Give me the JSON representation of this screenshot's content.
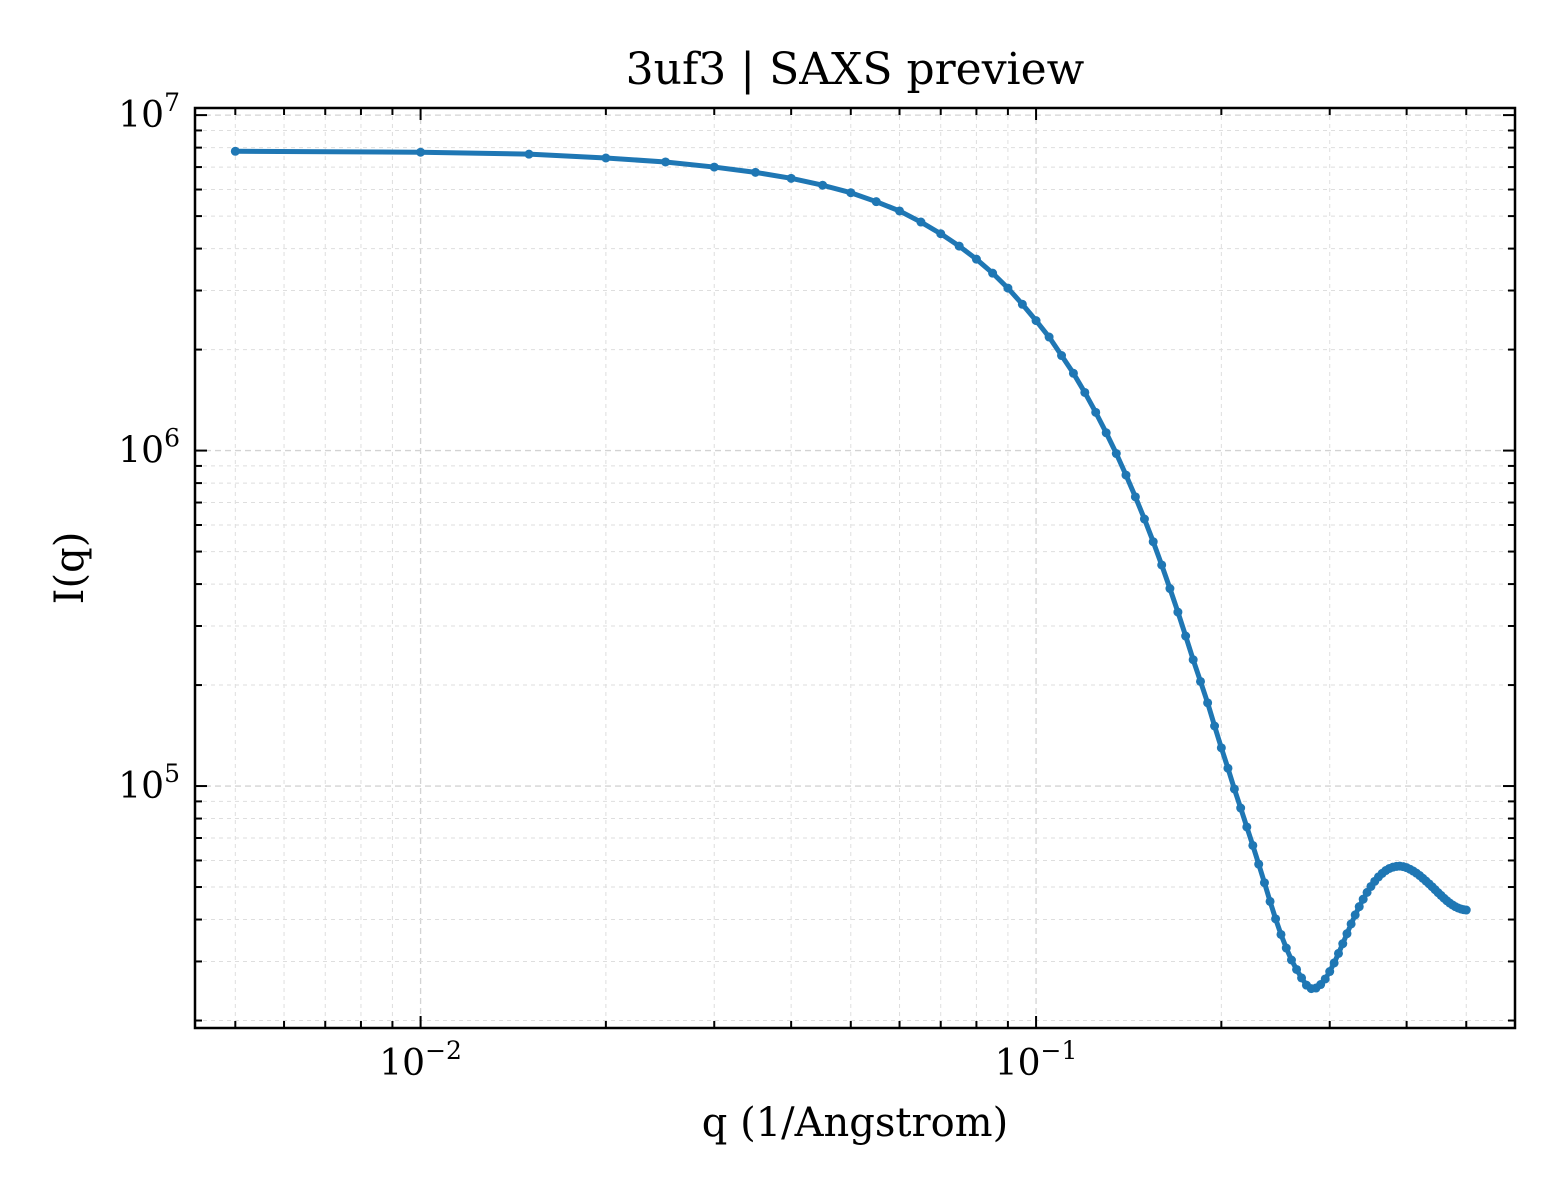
{
  "chart_data": {
    "type": "line",
    "title": "3uf3 | SAXS preview",
    "xlabel": "q (1/Angstrom)",
    "ylabel": "I(q)",
    "xscale": "log",
    "yscale": "log",
    "xlim": [
      0.0043,
      0.6
    ],
    "ylim": [
      19000,
      10500000
    ],
    "grid": true,
    "legend": "none",
    "x_ticks": [
      {
        "base": "10",
        "exp": "−2",
        "value": 0.01
      },
      {
        "base": "10",
        "exp": "−1",
        "value": 0.1
      }
    ],
    "y_ticks": [
      {
        "base": "10",
        "exp": "5",
        "value": 100000
      },
      {
        "base": "10",
        "exp": "6",
        "value": 1000000
      },
      {
        "base": "10",
        "exp": "7",
        "value": 10000000
      }
    ],
    "series": [
      {
        "color": "#1f77b4",
        "marker": "circle",
        "x": [
          0.005,
          0.01,
          0.015,
          0.02,
          0.025,
          0.03,
          0.035,
          0.04,
          0.045,
          0.05,
          0.055,
          0.06,
          0.065,
          0.07,
          0.075,
          0.08,
          0.085,
          0.09,
          0.095,
          0.1,
          0.105,
          0.11,
          0.115,
          0.12,
          0.125,
          0.13,
          0.135,
          0.14,
          0.145,
          0.15,
          0.155,
          0.16,
          0.165,
          0.17,
          0.175,
          0.18,
          0.185,
          0.19,
          0.195,
          0.2,
          0.205,
          0.21,
          0.215,
          0.22,
          0.225,
          0.23,
          0.235,
          0.24,
          0.245,
          0.25,
          0.255,
          0.26,
          0.265,
          0.27,
          0.275,
          0.28,
          0.285,
          0.29,
          0.295,
          0.3,
          0.305,
          0.31,
          0.315,
          0.32,
          0.325,
          0.33,
          0.335,
          0.34,
          0.345,
          0.35,
          0.355,
          0.36,
          0.365,
          0.37,
          0.375,
          0.38,
          0.385,
          0.39,
          0.395,
          0.4,
          0.405,
          0.41,
          0.415,
          0.42,
          0.425,
          0.43,
          0.435,
          0.44,
          0.445,
          0.45,
          0.455,
          0.46,
          0.465,
          0.47,
          0.475,
          0.48,
          0.485,
          0.49,
          0.495,
          0.5
        ],
        "y": [
          7800000,
          7750000,
          7650000,
          7450000,
          7250000,
          7000000,
          6750000,
          6480000,
          6180000,
          5870000,
          5520000,
          5180000,
          4800000,
          4430000,
          4070000,
          3720000,
          3380000,
          3050000,
          2730000,
          2440000,
          2180000,
          1920000,
          1700000,
          1490000,
          1300000,
          1130000,
          980000,
          845000,
          728000,
          625000,
          535000,
          456000,
          388000,
          330000,
          280000,
          238000,
          205000,
          177000,
          151000,
          130000,
          113000,
          98000,
          86000,
          75500,
          66500,
          58500,
          51500,
          45300,
          40200,
          36100,
          32900,
          30300,
          28400,
          26800,
          25500,
          24900,
          25000,
          25600,
          26600,
          28000,
          29700,
          31700,
          33900,
          36300,
          38800,
          41300,
          43700,
          46000,
          48200,
          50200,
          52000,
          53600,
          54900,
          56000,
          56800,
          57300,
          57600,
          57700,
          57500,
          57100,
          56500,
          55800,
          55000,
          54100,
          53100,
          52100,
          51100,
          50100,
          49100,
          48100,
          47200,
          46300,
          45500,
          44800,
          44200,
          43700,
          43300,
          43000,
          42800,
          42700
        ]
      }
    ]
  }
}
